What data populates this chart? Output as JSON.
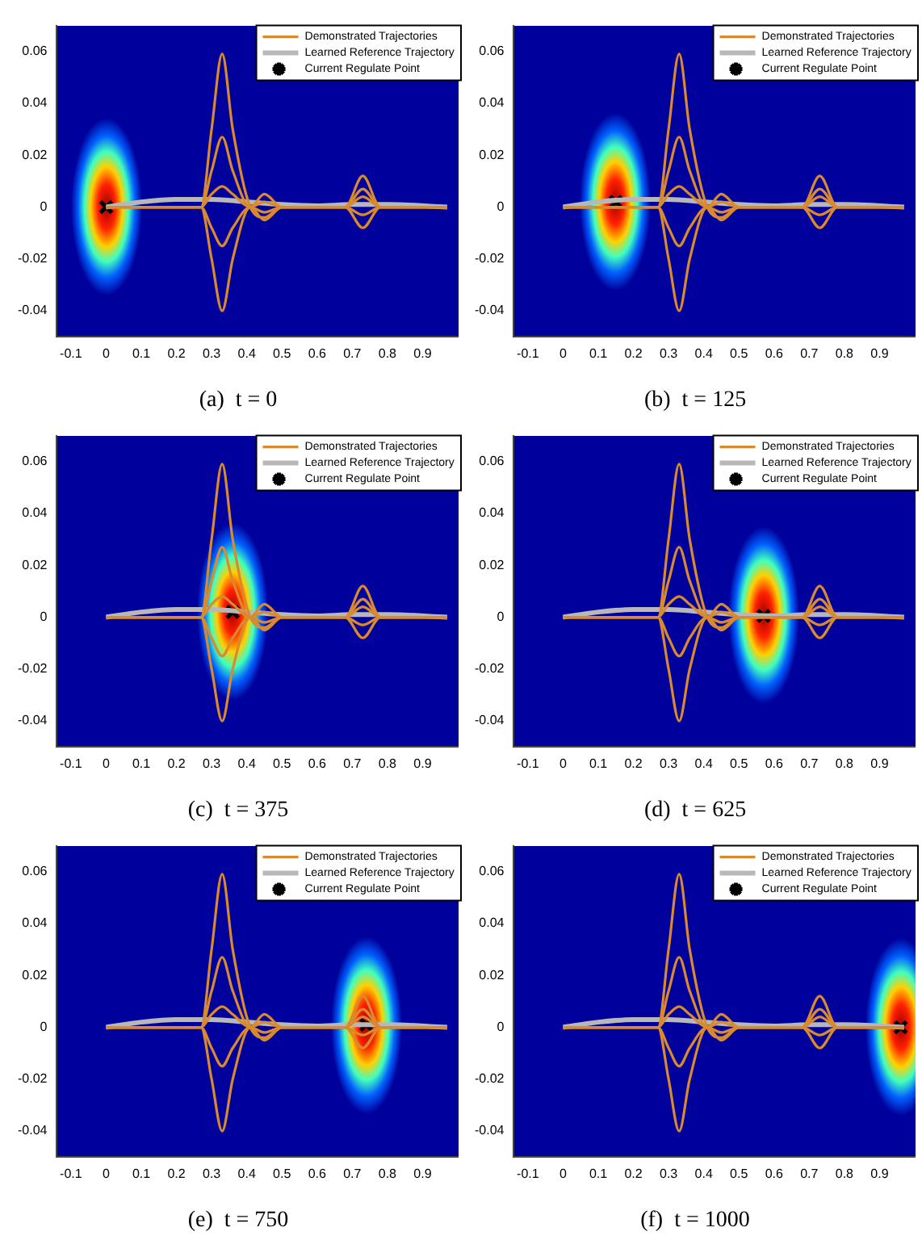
{
  "chart_data": [
    {
      "type": "line",
      "title": "(a)  t = 0",
      "xlim": [
        -0.14,
        1.0
      ],
      "ylim": [
        -0.05,
        0.07
      ],
      "xticks": [
        -0.1,
        0,
        0.1,
        0.2,
        0.3,
        0.4,
        0.5,
        0.6,
        0.7,
        0.8,
        0.9
      ],
      "yticks": [
        -0.04,
        -0.02,
        0,
        0.02,
        0.04,
        0.06
      ],
      "legend": "top right",
      "grid": false,
      "series": [
        {
          "name": "Demonstrated Trajectories",
          "color": "#d98a2e",
          "x": [
            0,
            0.27,
            0.3,
            0.33,
            0.36,
            0.41,
            0.45,
            0.5,
            0.68,
            0.73,
            0.78,
            0.97
          ],
          "values": [
            0,
            0,
            0.03,
            0.059,
            0.03,
            0,
            -0.004,
            0,
            0,
            0.012,
            0,
            0
          ]
        },
        {
          "color": "#d98a2e",
          "x": [
            0,
            0.27,
            0.3,
            0.33,
            0.36,
            0.41,
            0.45,
            0.5,
            0.68,
            0.73,
            0.78,
            0.97
          ],
          "values": [
            0,
            0,
            0.014,
            0.027,
            0.014,
            0,
            0.005,
            0,
            0,
            0.007,
            0,
            0
          ]
        },
        {
          "color": "#d98a2e",
          "x": [
            0,
            0.27,
            0.3,
            0.33,
            0.36,
            0.41,
            0.45,
            0.5,
            0.68,
            0.73,
            0.78,
            0.97
          ],
          "values": [
            0,
            0,
            0.005,
            0.008,
            0.005,
            0,
            0.002,
            0,
            0,
            -0.003,
            0,
            0
          ]
        },
        {
          "color": "#d98a2e",
          "x": [
            0,
            0.27,
            0.3,
            0.33,
            0.36,
            0.41,
            0.45,
            0.5,
            0.68,
            0.73,
            0.78,
            0.97
          ],
          "values": [
            0,
            0,
            -0.008,
            -0.015,
            -0.008,
            0,
            -0.002,
            0,
            0,
            0.004,
            0,
            0
          ]
        },
        {
          "color": "#d98a2e",
          "x": [
            0,
            0.27,
            0.3,
            0.33,
            0.36,
            0.41,
            0.45,
            0.5,
            0.68,
            0.73,
            0.78,
            0.97
          ],
          "values": [
            0,
            0,
            -0.02,
            -0.04,
            -0.02,
            0,
            -0.005,
            0,
            0,
            -0.008,
            0,
            0
          ]
        },
        {
          "name": "Learned Reference Trajectory",
          "color": "#b8b8b8",
          "x": [
            0,
            0.1,
            0.2,
            0.3,
            0.4,
            0.5,
            0.6,
            0.7,
            0.8,
            0.97
          ],
          "values": [
            0,
            0.002,
            0.003,
            0.003,
            0.002,
            0.001,
            0.0005,
            0.001,
            0.001,
            0
          ]
        },
        {
          "name": "Current Regulate Point",
          "type": "scatter",
          "marker": "cross",
          "color": "#000000",
          "x": [
            0
          ],
          "values": [
            0
          ]
        }
      ]
    },
    {
      "type": "line",
      "title": "(b)  t = 125",
      "xlim": [
        -0.14,
        1.0
      ],
      "ylim": [
        -0.05,
        0.07
      ],
      "xticks": [
        -0.1,
        0,
        0.1,
        0.2,
        0.3,
        0.4,
        0.5,
        0.6,
        0.7,
        0.8,
        0.9
      ],
      "yticks": [
        -0.04,
        -0.02,
        0,
        0.02,
        0.04,
        0.06
      ],
      "legend": "top right",
      "grid": false,
      "series": [
        {
          "name": "Demonstrated Trajectories",
          "color": "#d98a2e",
          "x": [
            0,
            0.27,
            0.3,
            0.33,
            0.36,
            0.41,
            0.45,
            0.5,
            0.68,
            0.73,
            0.78,
            0.97
          ],
          "values": [
            0,
            0,
            0.03,
            0.059,
            0.03,
            0,
            -0.004,
            0,
            0,
            0.012,
            0,
            0
          ]
        },
        {
          "color": "#d98a2e",
          "x": [
            0,
            0.27,
            0.3,
            0.33,
            0.36,
            0.41,
            0.45,
            0.5,
            0.68,
            0.73,
            0.78,
            0.97
          ],
          "values": [
            0,
            0,
            0.014,
            0.027,
            0.014,
            0,
            0.005,
            0,
            0,
            0.007,
            0,
            0
          ]
        },
        {
          "color": "#d98a2e",
          "x": [
            0,
            0.27,
            0.3,
            0.33,
            0.36,
            0.41,
            0.45,
            0.5,
            0.68,
            0.73,
            0.78,
            0.97
          ],
          "values": [
            0,
            0,
            0.005,
            0.008,
            0.005,
            0,
            0.002,
            0,
            0,
            -0.003,
            0,
            0
          ]
        },
        {
          "color": "#d98a2e",
          "x": [
            0,
            0.27,
            0.3,
            0.33,
            0.36,
            0.41,
            0.45,
            0.5,
            0.68,
            0.73,
            0.78,
            0.97
          ],
          "values": [
            0,
            0,
            -0.008,
            -0.015,
            -0.008,
            0,
            -0.002,
            0,
            0,
            0.004,
            0,
            0
          ]
        },
        {
          "color": "#d98a2e",
          "x": [
            0,
            0.27,
            0.3,
            0.33,
            0.36,
            0.41,
            0.45,
            0.5,
            0.68,
            0.73,
            0.78,
            0.97
          ],
          "values": [
            0,
            0,
            -0.02,
            -0.04,
            -0.02,
            0,
            -0.005,
            0,
            0,
            -0.008,
            0,
            0
          ]
        },
        {
          "name": "Learned Reference Trajectory",
          "color": "#b8b8b8",
          "x": [
            0,
            0.1,
            0.2,
            0.3,
            0.4,
            0.5,
            0.6,
            0.7,
            0.8,
            0.97
          ],
          "values": [
            0,
            0.002,
            0.003,
            0.003,
            0.002,
            0.001,
            0.0005,
            0.001,
            0.001,
            0
          ]
        },
        {
          "name": "Current Regulate Point",
          "type": "scatter",
          "marker": "cross",
          "color": "#000000",
          "x": [
            0.15
          ],
          "values": [
            0.002
          ]
        }
      ]
    },
    {
      "type": "line",
      "title": "(c)  t = 375",
      "xlim": [
        -0.14,
        1.0
      ],
      "ylim": [
        -0.05,
        0.07
      ],
      "xticks": [
        -0.1,
        0,
        0.1,
        0.2,
        0.3,
        0.4,
        0.5,
        0.6,
        0.7,
        0.8,
        0.9
      ],
      "yticks": [
        -0.04,
        -0.02,
        0,
        0.02,
        0.04,
        0.06
      ],
      "legend": "top right",
      "grid": false,
      "series": [
        {
          "name": "Demonstrated Trajectories",
          "color": "#d98a2e",
          "x": [
            0,
            0.27,
            0.3,
            0.33,
            0.36,
            0.41,
            0.45,
            0.5,
            0.68,
            0.73,
            0.78,
            0.97
          ],
          "values": [
            0,
            0,
            0.03,
            0.059,
            0.03,
            0,
            -0.004,
            0,
            0,
            0.012,
            0,
            0
          ]
        },
        {
          "color": "#d98a2e",
          "x": [
            0,
            0.27,
            0.3,
            0.33,
            0.36,
            0.41,
            0.45,
            0.5,
            0.68,
            0.73,
            0.78,
            0.97
          ],
          "values": [
            0,
            0,
            0.014,
            0.027,
            0.014,
            0,
            0.005,
            0,
            0,
            0.007,
            0,
            0
          ]
        },
        {
          "color": "#d98a2e",
          "x": [
            0,
            0.27,
            0.3,
            0.33,
            0.36,
            0.41,
            0.45,
            0.5,
            0.68,
            0.73,
            0.78,
            0.97
          ],
          "values": [
            0,
            0,
            0.005,
            0.008,
            0.005,
            0,
            0.002,
            0,
            0,
            -0.003,
            0,
            0
          ]
        },
        {
          "color": "#d98a2e",
          "x": [
            0,
            0.27,
            0.3,
            0.33,
            0.36,
            0.41,
            0.45,
            0.5,
            0.68,
            0.73,
            0.78,
            0.97
          ],
          "values": [
            0,
            0,
            -0.008,
            -0.015,
            -0.008,
            0,
            -0.002,
            0,
            0,
            0.004,
            0,
            0
          ]
        },
        {
          "color": "#d98a2e",
          "x": [
            0,
            0.27,
            0.3,
            0.33,
            0.36,
            0.41,
            0.45,
            0.5,
            0.68,
            0.73,
            0.78,
            0.97
          ],
          "values": [
            0,
            0,
            -0.02,
            -0.04,
            -0.02,
            0,
            -0.005,
            0,
            0,
            -0.008,
            0,
            0
          ]
        },
        {
          "name": "Learned Reference Trajectory",
          "color": "#b8b8b8",
          "x": [
            0,
            0.1,
            0.2,
            0.3,
            0.4,
            0.5,
            0.6,
            0.7,
            0.8,
            0.97
          ],
          "values": [
            0,
            0.002,
            0.003,
            0.003,
            0.002,
            0.001,
            0.0005,
            0.001,
            0.001,
            0
          ]
        },
        {
          "name": "Current Regulate Point",
          "type": "scatter",
          "marker": "cross",
          "color": "#000000",
          "x": [
            0.36
          ],
          "values": [
            0.002
          ]
        }
      ]
    },
    {
      "type": "line",
      "title": "(d)  t = 625",
      "xlim": [
        -0.14,
        1.0
      ],
      "ylim": [
        -0.05,
        0.07
      ],
      "xticks": [
        -0.1,
        0,
        0.1,
        0.2,
        0.3,
        0.4,
        0.5,
        0.6,
        0.7,
        0.8,
        0.9
      ],
      "yticks": [
        -0.04,
        -0.02,
        0,
        0.02,
        0.04,
        0.06
      ],
      "legend": "top right",
      "grid": false,
      "series": [
        {
          "name": "Demonstrated Trajectories",
          "color": "#d98a2e",
          "x": [
            0,
            0.27,
            0.3,
            0.33,
            0.36,
            0.41,
            0.45,
            0.5,
            0.68,
            0.73,
            0.78,
            0.97
          ],
          "values": [
            0,
            0,
            0.03,
            0.059,
            0.03,
            0,
            -0.004,
            0,
            0,
            0.012,
            0,
            0
          ]
        },
        {
          "color": "#d98a2e",
          "x": [
            0,
            0.27,
            0.3,
            0.33,
            0.36,
            0.41,
            0.45,
            0.5,
            0.68,
            0.73,
            0.78,
            0.97
          ],
          "values": [
            0,
            0,
            0.014,
            0.027,
            0.014,
            0,
            0.005,
            0,
            0,
            0.007,
            0,
            0
          ]
        },
        {
          "color": "#d98a2e",
          "x": [
            0,
            0.27,
            0.3,
            0.33,
            0.36,
            0.41,
            0.45,
            0.5,
            0.68,
            0.73,
            0.78,
            0.97
          ],
          "values": [
            0,
            0,
            0.005,
            0.008,
            0.005,
            0,
            0.002,
            0,
            0,
            -0.003,
            0,
            0
          ]
        },
        {
          "color": "#d98a2e",
          "x": [
            0,
            0.27,
            0.3,
            0.33,
            0.36,
            0.41,
            0.45,
            0.5,
            0.68,
            0.73,
            0.78,
            0.97
          ],
          "values": [
            0,
            0,
            -0.008,
            -0.015,
            -0.008,
            0,
            -0.002,
            0,
            0,
            0.004,
            0,
            0
          ]
        },
        {
          "color": "#d98a2e",
          "x": [
            0,
            0.27,
            0.3,
            0.33,
            0.36,
            0.41,
            0.45,
            0.5,
            0.68,
            0.73,
            0.78,
            0.97
          ],
          "values": [
            0,
            0,
            -0.02,
            -0.04,
            -0.02,
            0,
            -0.005,
            0,
            0,
            -0.008,
            0,
            0
          ]
        },
        {
          "name": "Learned Reference Trajectory",
          "color": "#b8b8b8",
          "x": [
            0,
            0.1,
            0.2,
            0.3,
            0.4,
            0.5,
            0.6,
            0.7,
            0.8,
            0.97
          ],
          "values": [
            0,
            0.002,
            0.003,
            0.003,
            0.002,
            0.001,
            0.0005,
            0.001,
            0.001,
            0
          ]
        },
        {
          "name": "Current Regulate Point",
          "type": "scatter",
          "marker": "cross",
          "color": "#000000",
          "x": [
            0.57
          ],
          "values": [
            0.0005
          ]
        }
      ]
    },
    {
      "type": "line",
      "title": "(e)  t = 750",
      "xlim": [
        -0.14,
        1.0
      ],
      "ylim": [
        -0.05,
        0.07
      ],
      "xticks": [
        -0.1,
        0,
        0.1,
        0.2,
        0.3,
        0.4,
        0.5,
        0.6,
        0.7,
        0.8,
        0.9
      ],
      "yticks": [
        -0.04,
        -0.02,
        0,
        0.02,
        0.04,
        0.06
      ],
      "legend": "top right",
      "grid": false,
      "series": [
        {
          "name": "Demonstrated Trajectories",
          "color": "#d98a2e",
          "x": [
            0,
            0.27,
            0.3,
            0.33,
            0.36,
            0.41,
            0.45,
            0.5,
            0.68,
            0.73,
            0.78,
            0.97
          ],
          "values": [
            0,
            0,
            0.03,
            0.059,
            0.03,
            0,
            -0.004,
            0,
            0,
            0.012,
            0,
            0
          ]
        },
        {
          "color": "#d98a2e",
          "x": [
            0,
            0.27,
            0.3,
            0.33,
            0.36,
            0.41,
            0.45,
            0.5,
            0.68,
            0.73,
            0.78,
            0.97
          ],
          "values": [
            0,
            0,
            0.014,
            0.027,
            0.014,
            0,
            0.005,
            0,
            0,
            0.007,
            0,
            0
          ]
        },
        {
          "color": "#d98a2e",
          "x": [
            0,
            0.27,
            0.3,
            0.33,
            0.36,
            0.41,
            0.45,
            0.5,
            0.68,
            0.73,
            0.78,
            0.97
          ],
          "values": [
            0,
            0,
            0.005,
            0.008,
            0.005,
            0,
            0.002,
            0,
            0,
            -0.003,
            0,
            0
          ]
        },
        {
          "color": "#d98a2e",
          "x": [
            0,
            0.27,
            0.3,
            0.33,
            0.36,
            0.41,
            0.45,
            0.5,
            0.68,
            0.73,
            0.78,
            0.97
          ],
          "values": [
            0,
            0,
            -0.008,
            -0.015,
            -0.008,
            0,
            -0.002,
            0,
            0,
            0.004,
            0,
            0
          ]
        },
        {
          "color": "#d98a2e",
          "x": [
            0,
            0.27,
            0.3,
            0.33,
            0.36,
            0.41,
            0.45,
            0.5,
            0.68,
            0.73,
            0.78,
            0.97
          ],
          "values": [
            0,
            0,
            -0.02,
            -0.04,
            -0.02,
            0,
            -0.005,
            0,
            0,
            -0.008,
            0,
            0
          ]
        },
        {
          "name": "Learned Reference Trajectory",
          "color": "#b8b8b8",
          "x": [
            0,
            0.1,
            0.2,
            0.3,
            0.4,
            0.5,
            0.6,
            0.7,
            0.8,
            0.97
          ],
          "values": [
            0,
            0.002,
            0.003,
            0.003,
            0.002,
            0.001,
            0.0005,
            0.001,
            0.001,
            0
          ]
        },
        {
          "name": "Current Regulate Point",
          "type": "scatter",
          "marker": "cross",
          "color": "#000000",
          "x": [
            0.74
          ],
          "values": [
            0.001
          ]
        }
      ]
    },
    {
      "type": "line",
      "title": "(f)  t = 1000",
      "xlim": [
        -0.14,
        1.0
      ],
      "ylim": [
        -0.05,
        0.07
      ],
      "xticks": [
        -0.1,
        0,
        0.1,
        0.2,
        0.3,
        0.4,
        0.5,
        0.6,
        0.7,
        0.8,
        0.9
      ],
      "yticks": [
        -0.04,
        -0.02,
        0,
        0.02,
        0.04,
        0.06
      ],
      "legend": "top right",
      "grid": false,
      "series": [
        {
          "name": "Demonstrated Trajectories",
          "color": "#d98a2e",
          "x": [
            0,
            0.27,
            0.3,
            0.33,
            0.36,
            0.41,
            0.45,
            0.5,
            0.68,
            0.73,
            0.78,
            0.97
          ],
          "values": [
            0,
            0,
            0.03,
            0.059,
            0.03,
            0,
            -0.004,
            0,
            0,
            0.012,
            0,
            0
          ]
        },
        {
          "color": "#d98a2e",
          "x": [
            0,
            0.27,
            0.3,
            0.33,
            0.36,
            0.41,
            0.45,
            0.5,
            0.68,
            0.73,
            0.78,
            0.97
          ],
          "values": [
            0,
            0,
            0.014,
            0.027,
            0.014,
            0,
            0.005,
            0,
            0,
            0.007,
            0,
            0
          ]
        },
        {
          "color": "#d98a2e",
          "x": [
            0,
            0.27,
            0.3,
            0.33,
            0.36,
            0.41,
            0.45,
            0.5,
            0.68,
            0.73,
            0.78,
            0.97
          ],
          "values": [
            0,
            0,
            0.005,
            0.008,
            0.005,
            0,
            0.002,
            0,
            0,
            -0.003,
            0,
            0
          ]
        },
        {
          "color": "#d98a2e",
          "x": [
            0,
            0.27,
            0.3,
            0.33,
            0.36,
            0.41,
            0.45,
            0.5,
            0.68,
            0.73,
            0.78,
            0.97
          ],
          "values": [
            0,
            0,
            -0.008,
            -0.015,
            -0.008,
            0,
            -0.002,
            0,
            0,
            0.004,
            0,
            0
          ]
        },
        {
          "color": "#d98a2e",
          "x": [
            0,
            0.27,
            0.3,
            0.33,
            0.36,
            0.41,
            0.45,
            0.5,
            0.68,
            0.73,
            0.78,
            0.97
          ],
          "values": [
            0,
            0,
            -0.02,
            -0.04,
            -0.02,
            0,
            -0.005,
            0,
            0,
            -0.008,
            0,
            0
          ]
        },
        {
          "name": "Learned Reference Trajectory",
          "color": "#b8b8b8",
          "x": [
            0,
            0.1,
            0.2,
            0.3,
            0.4,
            0.5,
            0.6,
            0.7,
            0.8,
            0.97
          ],
          "values": [
            0,
            0.002,
            0.003,
            0.003,
            0.002,
            0.001,
            0.0005,
            0.001,
            0.001,
            0
          ]
        },
        {
          "name": "Current Regulate Point",
          "type": "scatter",
          "marker": "cross",
          "color": "#000000",
          "x": [
            0.96
          ],
          "values": [
            0
          ]
        }
      ]
    }
  ]
}
